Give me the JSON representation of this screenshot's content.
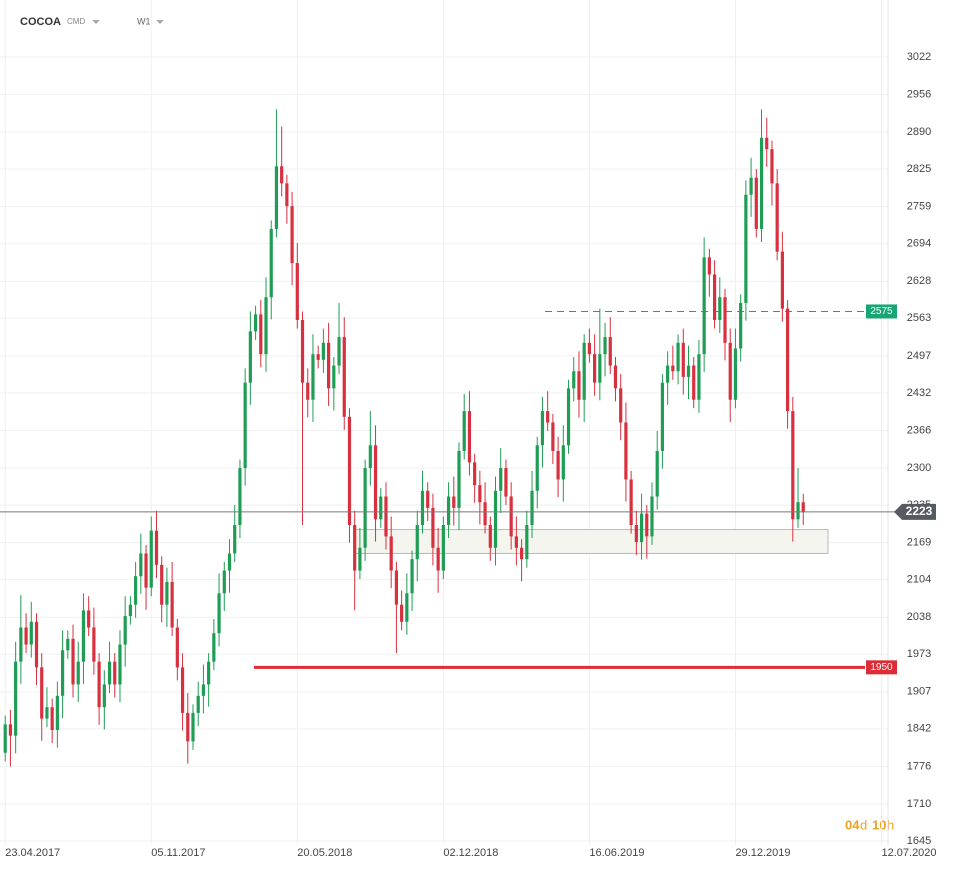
{
  "header": {
    "symbol": "COCOA",
    "market": "CMD",
    "interval": "W1"
  },
  "chart_data": {
    "type": "candlestick",
    "xlim": [
      -1,
      175
    ],
    "xticks": [
      {
        "value": 0,
        "label": "23.04.2017"
      },
      {
        "value": 28,
        "label": "05.11.2017"
      },
      {
        "value": 56,
        "label": "20.05.2018"
      },
      {
        "value": 84,
        "label": "02.12.2018"
      },
      {
        "value": 112,
        "label": "16.06.2019"
      },
      {
        "value": 140,
        "label": "29.12.2019"
      },
      {
        "value": 168,
        "label": "12.07.2020"
      }
    ],
    "ylim": [
      1638,
      3122
    ],
    "yticks": [
      1645,
      1710,
      1776,
      1842,
      1907,
      1973,
      2038,
      2104,
      2169,
      2235,
      2300,
      2366,
      2432,
      2497,
      2563,
      2628,
      2694,
      2759,
      2825,
      2890,
      2956,
      3022
    ],
    "grid": true,
    "up_color": "#1f9d55",
    "down_color": "#d7303f",
    "open": [
      1800,
      1850,
      1830,
      1960,
      2020,
      1990,
      2030,
      1950,
      1860,
      1880,
      1840,
      1900,
      1980,
      2000,
      1920,
      1960,
      2050,
      2020,
      1960,
      1880,
      1920,
      1960,
      1920,
      1990,
      2040,
      2060,
      2110,
      2150,
      2090,
      2190,
      2130,
      2060,
      2100,
      2020,
      1950,
      1870,
      1820,
      1870,
      1900,
      1920,
      1960,
      2010,
      2080,
      2120,
      2150,
      2200,
      2300,
      2450,
      2540,
      2570,
      2500,
      2600,
      2720,
      2830,
      2800,
      2760,
      2660,
      2560,
      2450,
      2420,
      2500,
      2490,
      2520,
      2440,
      2480,
      2530,
      2390,
      2200,
      2120,
      2160,
      2300,
      2340,
      2210,
      2250,
      2180,
      2120,
      2060,
      2030,
      2080,
      2140,
      2200,
      2260,
      2230,
      2160,
      2120,
      2200,
      2250,
      2230,
      2330,
      2400,
      2310,
      2270,
      2240,
      2200,
      2160,
      2260,
      2300,
      2250,
      2180,
      2160,
      2140,
      2200,
      2260,
      2340,
      2400,
      2380,
      2330,
      2280,
      2340,
      2440,
      2470,
      2420,
      2520,
      2500,
      2450,
      2500,
      2530,
      2480,
      2440,
      2380,
      2280,
      2200,
      2170,
      2220,
      2180,
      2250,
      2330,
      2450,
      2480,
      2470,
      2520,
      2460,
      2480,
      2420,
      2500,
      2670,
      2640,
      2560,
      2600,
      2520,
      2420,
      2510,
      2590,
      2780,
      2810,
      2720,
      2880,
      2860,
      2800,
      2680,
      2580,
      2400,
      2210,
      2240
    ],
    "high": [
      1865,
      1875,
      1995,
      2077,
      2045,
      2065,
      2045,
      1975,
      1915,
      1895,
      1925,
      2015,
      2015,
      2025,
      1995,
      2080,
      2075,
      2055,
      1975,
      1945,
      1995,
      1975,
      2015,
      2075,
      2075,
      2135,
      2185,
      2165,
      2215,
      2225,
      2145,
      2125,
      2135,
      2035,
      1975,
      1905,
      1885,
      1925,
      1955,
      1975,
      2035,
      2115,
      2135,
      2175,
      2235,
      2315,
      2475,
      2575,
      2585,
      2595,
      2635,
      2735,
      2930,
      2900,
      2815,
      2785,
      2695,
      2575,
      2475,
      2535,
      2515,
      2545,
      2555,
      2495,
      2590,
      2565,
      2405,
      2225,
      2195,
      2315,
      2400,
      2375,
      2265,
      2275,
      2215,
      2135,
      2085,
      2115,
      2155,
      2225,
      2295,
      2275,
      2255,
      2195,
      2215,
      2275,
      2285,
      2345,
      2430,
      2435,
      2325,
      2295,
      2275,
      2215,
      2285,
      2335,
      2315,
      2275,
      2215,
      2175,
      2225,
      2295,
      2355,
      2425,
      2435,
      2395,
      2355,
      2375,
      2455,
      2495,
      2505,
      2535,
      2545,
      2535,
      2580,
      2555,
      2565,
      2495,
      2465,
      2415,
      2295,
      2225,
      2255,
      2235,
      2275,
      2365,
      2465,
      2505,
      2515,
      2535,
      2545,
      2515,
      2495,
      2525,
      2705,
      2685,
      2665,
      2635,
      2615,
      2545,
      2545,
      2605,
      2805,
      2845,
      2825,
      2930,
      2915,
      2875,
      2825,
      2715,
      2595,
      2425,
      2300,
      2255
    ],
    "low": [
      1785,
      1776,
      1799,
      1921,
      1975,
      1967,
      1919,
      1821,
      1845,
      1817,
      1809,
      1861,
      1965,
      1897,
      1889,
      1921,
      2005,
      1937,
      1849,
      1841,
      1905,
      1897,
      1889,
      1951,
      2025,
      2037,
      2079,
      2051,
      2075,
      2107,
      2029,
      2021,
      2005,
      1927,
      1839,
      1781,
      1805,
      1847,
      1869,
      1881,
      1945,
      1987,
      2049,
      2081,
      2135,
      2177,
      2269,
      2411,
      2525,
      2477,
      2469,
      2561,
      2705,
      2777,
      2729,
      2621,
      2545,
      2200,
      2389,
      2381,
      2475,
      2467,
      2409,
      2401,
      2465,
      2367,
      2169,
      2050,
      2105,
      2137,
      2269,
      2171,
      2195,
      2157,
      2089,
      1975,
      2015,
      2007,
      2049,
      2101,
      2185,
      2207,
      2129,
      2081,
      2105,
      2177,
      2199,
      2191,
      2315,
      2287,
      2239,
      2201,
      2185,
      2137,
      2129,
      2221,
      2235,
      2157,
      2129,
      2101,
      2125,
      2177,
      2229,
      2301,
      2365,
      2307,
      2249,
      2241,
      2325,
      2417,
      2389,
      2381,
      2485,
      2427,
      2419,
      2461,
      2465,
      2417,
      2349,
      2241,
      2185,
      2147,
      2139,
      2141,
      2165,
      2227,
      2299,
      2411,
      2455,
      2447,
      2429,
      2421,
      2405,
      2397,
      2469,
      2601,
      2545,
      2537,
      2489,
      2381,
      2405,
      2487,
      2559,
      2741,
      2705,
      2697,
      2829,
      2761,
      2665,
      2557,
      2369,
      2171,
      2195,
      2200
    ],
    "close": [
      1850,
      1830,
      1960,
      2020,
      1990,
      2030,
      1950,
      1860,
      1880,
      1840,
      1900,
      1980,
      2000,
      1920,
      1960,
      2050,
      2020,
      1960,
      1880,
      1920,
      1960,
      1920,
      1990,
      2040,
      2060,
      2110,
      2150,
      2090,
      2190,
      2130,
      2060,
      2100,
      2020,
      1950,
      1870,
      1820,
      1870,
      1900,
      1920,
      1960,
      2010,
      2080,
      2120,
      2150,
      2200,
      2300,
      2450,
      2540,
      2570,
      2500,
      2600,
      2720,
      2830,
      2800,
      2760,
      2660,
      2560,
      2450,
      2420,
      2500,
      2490,
      2520,
      2440,
      2480,
      2530,
      2390,
      2200,
      2120,
      2160,
      2300,
      2340,
      2210,
      2250,
      2180,
      2120,
      2060,
      2030,
      2080,
      2140,
      2200,
      2260,
      2230,
      2160,
      2120,
      2200,
      2250,
      2230,
      2330,
      2400,
      2310,
      2270,
      2240,
      2200,
      2160,
      2260,
      2300,
      2250,
      2180,
      2160,
      2140,
      2200,
      2260,
      2340,
      2400,
      2380,
      2330,
      2280,
      2340,
      2440,
      2470,
      2420,
      2520,
      2500,
      2450,
      2500,
      2530,
      2480,
      2440,
      2380,
      2280,
      2200,
      2170,
      2220,
      2180,
      2250,
      2330,
      2450,
      2480,
      2470,
      2520,
      2460,
      2480,
      2420,
      2500,
      2670,
      2640,
      2560,
      2600,
      2520,
      2420,
      2510,
      2590,
      2780,
      2810,
      2720,
      2880,
      2860,
      2800,
      2680,
      2580,
      2400,
      2210,
      2240,
      2223
    ],
    "last_price": 2223,
    "last_price_color": "#555b61",
    "levels": [
      {
        "value": 2575,
        "color": "#17a673",
        "style": "dashed"
      },
      {
        "value": 1950,
        "color": "#dd2c36",
        "style": "solid"
      }
    ],
    "zone": [
      2150,
      2192
    ],
    "countdown": {
      "days": "04",
      "days_unit": "d",
      "hours": "10",
      "hours_unit": "h"
    }
  }
}
